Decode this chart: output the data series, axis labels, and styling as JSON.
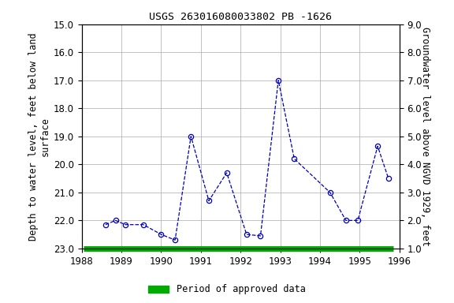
{
  "title": "USGS 263016080033802 PB -1626",
  "ylabel_left": "Depth to water level, feet below land\nsurface",
  "ylabel_right": "Groundwater level above NGVD 1929, feet",
  "x_values": [
    1988.6,
    1988.85,
    1989.1,
    1989.55,
    1990.0,
    1990.35,
    1990.75,
    1991.2,
    1991.65,
    1992.15,
    1992.5,
    1992.95,
    1993.35,
    1994.25,
    1994.65,
    1994.95,
    1995.45,
    1995.72
  ],
  "y_values": [
    22.15,
    22.0,
    22.15,
    22.15,
    22.5,
    22.7,
    19.0,
    21.3,
    20.3,
    22.5,
    22.55,
    17.0,
    19.8,
    21.0,
    22.0,
    22.0,
    19.35,
    20.5
  ],
  "ylim_left": [
    23.0,
    15.0
  ],
  "ylim_right": [
    1.0,
    9.0
  ],
  "xlim": [
    1988,
    1996
  ],
  "xticks": [
    1988,
    1989,
    1990,
    1991,
    1992,
    1993,
    1994,
    1995,
    1996
  ],
  "yticks_left": [
    15.0,
    16.0,
    17.0,
    18.0,
    19.0,
    20.0,
    21.0,
    22.0,
    23.0
  ],
  "yticks_right": [
    1.0,
    2.0,
    3.0,
    4.0,
    5.0,
    6.0,
    7.0,
    8.0,
    9.0
  ],
  "line_color": "#0000BB",
  "marker_color": "#0000BB",
  "grid_color": "#AAAAAA",
  "bg_color": "#FFFFFF",
  "green_bar_color": "#00AA00",
  "legend_label": "Period of approved data",
  "title_fontsize": 9.5,
  "label_fontsize": 8.5,
  "tick_fontsize": 8.5,
  "green_bar_x_start": 1988.05,
  "green_bar_x_end": 1995.85
}
